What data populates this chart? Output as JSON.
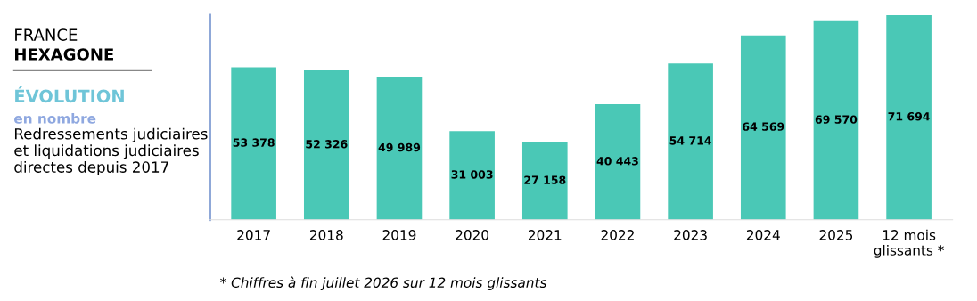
{
  "chart_data": {
    "type": "bar",
    "title": "ÉVOLUTION",
    "subtitle": "en nombre",
    "annotations": [
      "FRANCE",
      "HEXAGONE",
      "Redressements judiciaires et liquidations judiciaires directes depuis 2017",
      "* Chiffres à fin juillet 2026 sur 12 mois glissants"
    ],
    "categories": [
      "2017",
      "2018",
      "2019",
      "2020",
      "2021",
      "2022",
      "2023",
      "2024",
      "2025",
      "12 mois\nglissants *"
    ],
    "values": [
      53378,
      52326,
      49989,
      31003,
      27158,
      40443,
      54714,
      64569,
      69570,
      71694
    ],
    "value_labels": [
      "53 378",
      "52 326",
      "49 989",
      "31 003",
      "27 158",
      "40 443",
      "54 714",
      "64 569",
      "69 570",
      "71 694"
    ],
    "color": "#4ac8b6",
    "tick_labels": "x",
    "grid": false,
    "legend": false
  }
}
